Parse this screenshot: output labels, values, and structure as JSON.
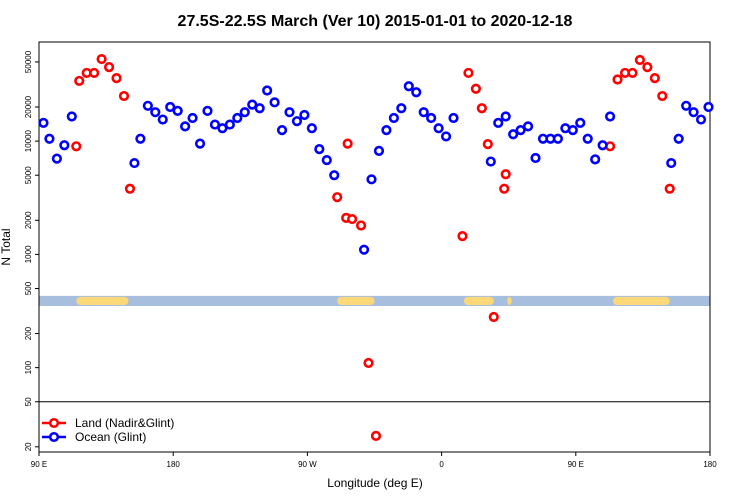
{
  "chart_data": {
    "type": "scatter",
    "title": "27.5S-22.5S March (Ver 10)   2015-01-01 to 2020-12-18",
    "xlabel": "Longitude (deg E)",
    "ylabel": "N Total",
    "y_scale": "log",
    "ylim": [
      18,
      75000
    ],
    "x_ticks": [
      {
        "pos": 0,
        "label": "90 E"
      },
      {
        "pos": 90,
        "label": "180"
      },
      {
        "pos": 180,
        "label": "90 W"
      },
      {
        "pos": 270,
        "label": "0"
      },
      {
        "pos": 360,
        "label": "90 E"
      },
      {
        "pos": 450,
        "label": "180"
      }
    ],
    "xlim": [
      0,
      450
    ],
    "y_ticks": [
      {
        "value": 20,
        "label": "20"
      },
      {
        "value": 50,
        "label": "50"
      },
      {
        "value": 100,
        "label": "100"
      },
      {
        "value": 200,
        "label": "200"
      },
      {
        "value": 500,
        "label": "500"
      },
      {
        "value": 1000,
        "label": "1000"
      },
      {
        "value": 2000,
        "label": "2000"
      },
      {
        "value": 5000,
        "label": "5000"
      },
      {
        "value": 10000,
        "label": "10000"
      },
      {
        "value": 20000,
        "label": "20000"
      },
      {
        "value": 50000,
        "label": "50000"
      }
    ],
    "separator_y": 50,
    "map_strip": {
      "y_low": 350,
      "y_high": 430,
      "ocean_color": "#A8BEDF",
      "land_color": "#FCD878",
      "land_ranges": [
        [
          25,
          60
        ],
        [
          200,
          225
        ],
        [
          285,
          305
        ],
        [
          314,
          317
        ],
        [
          385,
          423
        ]
      ]
    },
    "series": [
      {
        "name": "Land (Nadir&Glint)",
        "color": "#FF0000",
        "points": [
          [
            25,
            9000
          ],
          [
            27,
            34000
          ],
          [
            32,
            40000
          ],
          [
            37,
            40000
          ],
          [
            42,
            53000
          ],
          [
            47,
            45000
          ],
          [
            52,
            36000
          ],
          [
            57,
            25000
          ],
          [
            61,
            3800
          ],
          [
            200,
            3200
          ],
          [
            207,
            9500
          ],
          [
            206,
            2100
          ],
          [
            210,
            2050
          ],
          [
            216,
            1800
          ],
          [
            221,
            110
          ],
          [
            226,
            25
          ],
          [
            284,
            1450
          ],
          [
            288,
            40000
          ],
          [
            293,
            29000
          ],
          [
            297,
            19500
          ],
          [
            301,
            9400
          ],
          [
            305,
            280
          ],
          [
            312,
            3800
          ],
          [
            313,
            5100
          ],
          [
            383,
            9000
          ],
          [
            388,
            35000
          ],
          [
            393,
            40000
          ],
          [
            398,
            40000
          ],
          [
            403,
            52000
          ],
          [
            408,
            45000
          ],
          [
            413,
            36000
          ],
          [
            418,
            25000
          ],
          [
            423,
            3800
          ]
        ]
      },
      {
        "name": "Ocean (Glint)",
        "color": "#0000FF",
        "points": [
          [
            3,
            14500
          ],
          [
            7,
            10500
          ],
          [
            12,
            7000
          ],
          [
            17,
            9200
          ],
          [
            22,
            16500
          ],
          [
            64,
            6400
          ],
          [
            68,
            10500
          ],
          [
            73,
            20500
          ],
          [
            78,
            18000
          ],
          [
            83,
            15500
          ],
          [
            88,
            20000
          ],
          [
            93,
            18500
          ],
          [
            98,
            13500
          ],
          [
            103,
            16000
          ],
          [
            108,
            9500
          ],
          [
            113,
            18500
          ],
          [
            118,
            14000
          ],
          [
            123,
            13000
          ],
          [
            128,
            14000
          ],
          [
            133,
            16000
          ],
          [
            138,
            18000
          ],
          [
            143,
            21000
          ],
          [
            148,
            19500
          ],
          [
            153,
            28000
          ],
          [
            158,
            22000
          ],
          [
            163,
            12500
          ],
          [
            168,
            18000
          ],
          [
            173,
            15000
          ],
          [
            178,
            17000
          ],
          [
            183,
            13000
          ],
          [
            188,
            8500
          ],
          [
            193,
            6800
          ],
          [
            198,
            5000
          ],
          [
            218,
            1100
          ],
          [
            223,
            4600
          ],
          [
            228,
            8200
          ],
          [
            233,
            12500
          ],
          [
            238,
            16000
          ],
          [
            243,
            19500
          ],
          [
            248,
            30500
          ],
          [
            253,
            27000
          ],
          [
            258,
            18000
          ],
          [
            263,
            16000
          ],
          [
            268,
            13000
          ],
          [
            273,
            11000
          ],
          [
            278,
            16000
          ],
          [
            303,
            6600
          ],
          [
            308,
            14500
          ],
          [
            313,
            16500
          ],
          [
            318,
            11500
          ],
          [
            323,
            12500
          ],
          [
            328,
            13500
          ],
          [
            333,
            7100
          ],
          [
            338,
            10500
          ],
          [
            343,
            10500
          ],
          [
            348,
            10500
          ],
          [
            353,
            13000
          ],
          [
            358,
            12500
          ],
          [
            363,
            14500
          ],
          [
            368,
            10500
          ],
          [
            373,
            6900
          ],
          [
            378,
            9200
          ],
          [
            383,
            16500
          ],
          [
            424,
            6400
          ],
          [
            429,
            10500
          ],
          [
            434,
            20500
          ],
          [
            439,
            18000
          ],
          [
            444,
            15500
          ],
          [
            449,
            20000
          ]
        ]
      }
    ],
    "legend": {
      "position": "bottom-left",
      "entries": [
        "Land (Nadir&Glint)",
        "Ocean (Glint)"
      ]
    }
  }
}
